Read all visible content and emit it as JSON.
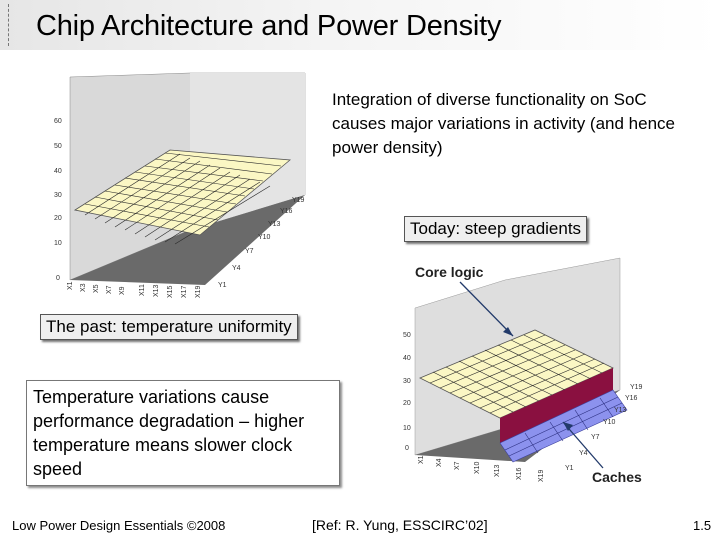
{
  "title": "Chip Architecture and Power Density",
  "intro_text": "Integration of diverse functionality on SoC causes major variations in activity (and hence power density)",
  "past_label": "The past: temperature uniformity",
  "today_label": "Today: steep gradients",
  "variation_note": "Temperature variations cause performance degradation – higher temperature means slower clock speed",
  "footer": {
    "left": "Low Power Design Essentials ©2008",
    "center": "[Ref: R. Yung, ESSCIRC’02]",
    "page": "1.5"
  },
  "past_chart": {
    "z_ticks": [
      "0",
      "10",
      "20",
      "30",
      "40",
      "50",
      "60"
    ],
    "x_ticks": [
      "X1",
      "X3",
      "X5",
      "X7",
      "X9",
      "X11",
      "X13",
      "X15",
      "X17",
      "X19"
    ],
    "y_ticks": [
      "Y1",
      "Y4",
      "Y7",
      "Y10",
      "Y13",
      "Y16",
      "Y19"
    ]
  },
  "today_chart": {
    "callout_core": "Core logic",
    "callout_caches": "Caches",
    "z_ticks": [
      "0",
      "10",
      "20",
      "30",
      "40",
      "50"
    ],
    "x_ticks": [
      "X1",
      "X4",
      "X7",
      "X10",
      "X13",
      "X16",
      "X19"
    ],
    "y_ticks": [
      "Y1",
      "Y4",
      "Y7",
      "Y10",
      "Y13",
      "Y16",
      "Y19"
    ]
  },
  "colors": {
    "surface_cream": "#fbf7c4",
    "grid_dark": "#2a2a2a",
    "floor_gray": "#6a6a6a",
    "wall_gray": "#d8d8d8",
    "cache_blue": "#8c92ee",
    "step_maroon": "#8a1040"
  }
}
